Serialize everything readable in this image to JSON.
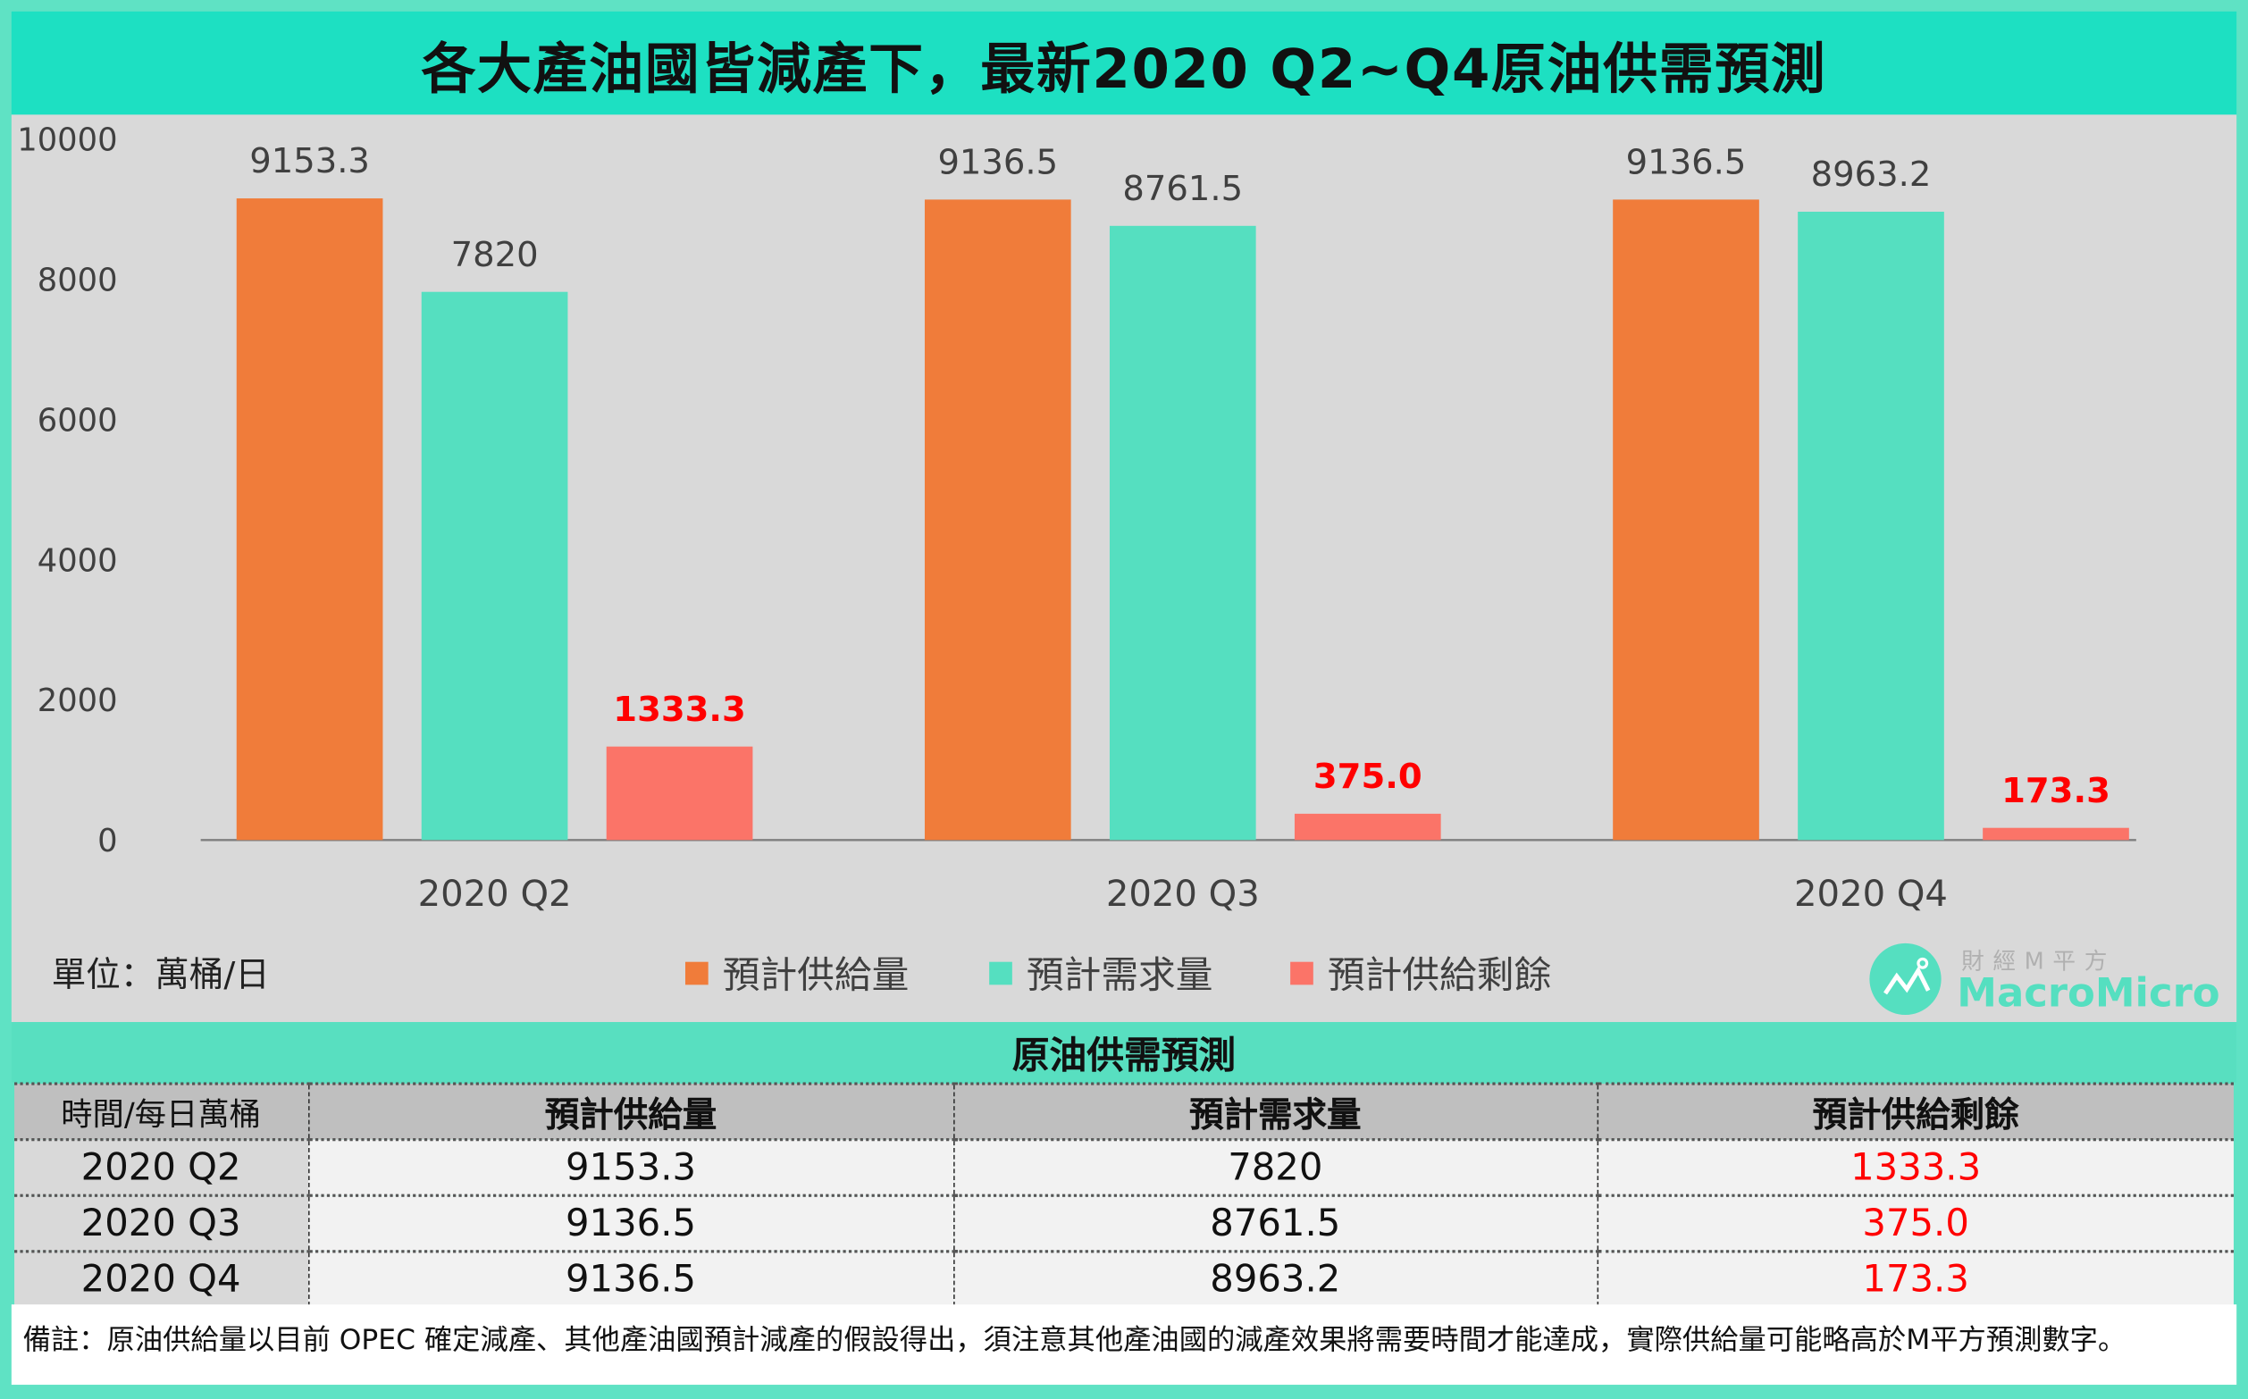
{
  "title": "各大產油國皆減產下，最新2020 Q2~Q4原油供需預測",
  "chart_data": {
    "type": "bar",
    "title": "各大產油國皆減產下，最新2020 Q2~Q4原油供需預測",
    "categories": [
      "2020 Q2",
      "2020 Q3",
      "2020 Q4"
    ],
    "series": [
      {
        "name": "預計供給量",
        "values": [
          9153.3,
          9136.5,
          9136.5
        ],
        "labels": [
          "9153.3",
          "9136.5",
          "9136.5"
        ],
        "color": "#f07c3a",
        "label_color": "#404040"
      },
      {
        "name": "預計需求量",
        "values": [
          7820,
          8761.5,
          8963.2
        ],
        "labels": [
          "7820",
          "8761.5",
          "8963.2"
        ],
        "color": "#55dfc0",
        "label_color": "#404040"
      },
      {
        "name": "預計供給剩餘",
        "values": [
          1333.3,
          375.0,
          173.3
        ],
        "labels": [
          "1333.3",
          "375.0",
          "173.3"
        ],
        "color": "#fb7468",
        "label_color": "#ff0000"
      }
    ],
    "ylim": [
      0,
      10000
    ],
    "yticks": [
      "0",
      "2000",
      "4000",
      "6000",
      "8000",
      "10000"
    ],
    "unit_label": "單位：萬桶/日",
    "grid": false,
    "legend": "bottom"
  },
  "logo": {
    "cn": "財經M平方",
    "en": "MacroMicro"
  },
  "table": {
    "title": "原油供需預測",
    "headers": [
      "時間/每日萬桶",
      "預計供給量",
      "預計需求量",
      "預計供給剩餘"
    ],
    "rows": [
      [
        "2020 Q2",
        "9153.3",
        "7820",
        "1333.3"
      ],
      [
        "2020 Q3",
        "9136.5",
        "8761.5",
        "375.0"
      ],
      [
        "2020 Q4",
        "9136.5",
        "8963.2",
        "173.3"
      ]
    ]
  },
  "note": "備註：原油供給量以目前 OPEC 確定減產、其他產油國預計減產的假設得出，須注意其他產油國的減產效果將需要時間才能達成，實際供給量可能略高於M平方預測數字。"
}
